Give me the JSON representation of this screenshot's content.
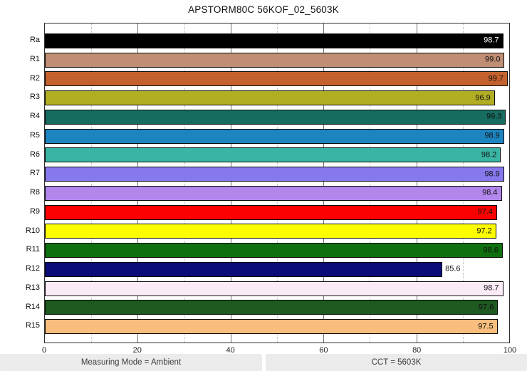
{
  "title": "APSTORM80C 56KOF_02_5603K",
  "status_bar": {
    "measuring_mode": "Measuring Mode = Ambient",
    "cct": "CCT = 5603K"
  },
  "chart_data": {
    "type": "bar",
    "orientation": "horizontal",
    "title": "APSTORM80C 56KOF_02_5603K",
    "xlabel": "",
    "ylabel": "",
    "xlim": [
      0,
      100
    ],
    "x_ticks": [
      0,
      20,
      40,
      60,
      80,
      100
    ],
    "grid": "vertical; solid gray major lines every 20, dashed light-gray minor lines every 10",
    "legend": "none",
    "categories": [
      "Ra",
      "R1",
      "R2",
      "R3",
      "R4",
      "R5",
      "R6",
      "R7",
      "R8",
      "R9",
      "R10",
      "R11",
      "R12",
      "R13",
      "R14",
      "R15"
    ],
    "values": [
      98.7,
      99.0,
      99.7,
      96.9,
      99.3,
      98.9,
      98.2,
      98.9,
      98.4,
      97.4,
      97.2,
      98.6,
      85.6,
      98.7,
      97.6,
      97.5
    ],
    "bars": [
      {
        "label": "Ra",
        "value": 98.7,
        "display": "98.7",
        "color": "#000000",
        "text_color": "#ffffff",
        "value_outside": false
      },
      {
        "label": "R1",
        "value": 99.0,
        "display": "99.0",
        "color": "#bf8e75",
        "text_color": "#111111",
        "value_outside": false
      },
      {
        "label": "R2",
        "value": 99.7,
        "display": "99.7",
        "color": "#c3622e",
        "text_color": "#111111",
        "value_outside": false
      },
      {
        "label": "R3",
        "value": 96.9,
        "display": "96.9",
        "color": "#b2ae24",
        "text_color": "#111111",
        "value_outside": false
      },
      {
        "label": "R4",
        "value": 99.3,
        "display": "99.3",
        "color": "#166c5f",
        "text_color": "#111111",
        "value_outside": false
      },
      {
        "label": "R5",
        "value": 98.9,
        "display": "98.9",
        "color": "#1d84bf",
        "text_color": "#111111",
        "value_outside": false
      },
      {
        "label": "R6",
        "value": 98.2,
        "display": "98.2",
        "color": "#3ab4a3",
        "text_color": "#111111",
        "value_outside": false
      },
      {
        "label": "R7",
        "value": 98.9,
        "display": "98.9",
        "color": "#8679ee",
        "text_color": "#111111",
        "value_outside": false
      },
      {
        "label": "R8",
        "value": 98.4,
        "display": "98.4",
        "color": "#b287ec",
        "text_color": "#111111",
        "value_outside": false
      },
      {
        "label": "R9",
        "value": 97.4,
        "display": "97.4",
        "color": "#fa0000",
        "text_color": "#111111",
        "value_outside": false
      },
      {
        "label": "R10",
        "value": 97.2,
        "display": "97.2",
        "color": "#fdfd00",
        "text_color": "#111111",
        "value_outside": false
      },
      {
        "label": "R11",
        "value": 98.6,
        "display": "98.6",
        "color": "#0f7010",
        "text_color": "#111111",
        "value_outside": false
      },
      {
        "label": "R12",
        "value": 85.6,
        "display": "85.6",
        "color": "#0b0b79",
        "text_color": "#111111",
        "value_outside": true
      },
      {
        "label": "R13",
        "value": 98.7,
        "display": "98.7",
        "color": "#fbebf7",
        "text_color": "#111111",
        "value_outside": false
      },
      {
        "label": "R14",
        "value": 97.6,
        "display": "97.6",
        "color": "#1e5a20",
        "text_color": "#111111",
        "value_outside": false
      },
      {
        "label": "R15",
        "value": 97.5,
        "display": "97.5",
        "color": "#f9be7d",
        "text_color": "#111111",
        "value_outside": false
      }
    ]
  }
}
